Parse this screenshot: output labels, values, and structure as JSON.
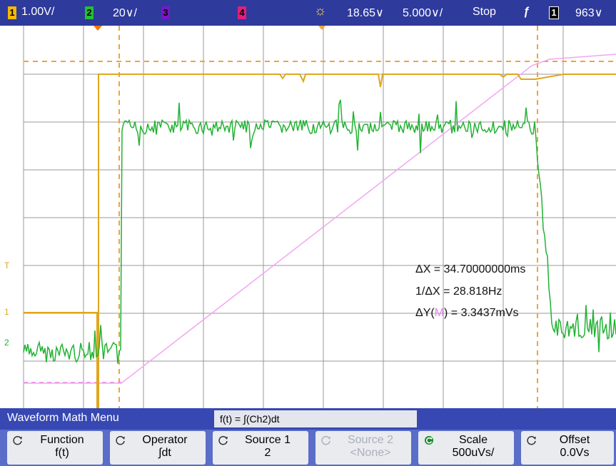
{
  "status_bar": {
    "ch1": {
      "num": "1",
      "scale": "1.00V/",
      "color": "#f5b800"
    },
    "ch2": {
      "num": "2",
      "scale": "20∨/",
      "color": "#22c033"
    },
    "ch3": {
      "num": "3",
      "color": "#7a16c8"
    },
    "ch4": {
      "num": "4",
      "color": "#e0207a"
    },
    "delay": "18.65∨",
    "timebase": "5.000∨/",
    "run_state": "Stop",
    "trigger_source": "1",
    "trigger_level": "963∨"
  },
  "measurements": {
    "delta_x": "ΔX = 34.70000000ms",
    "inv_delta_x": "1/ΔX = 28.818Hz",
    "delta_y_prefix": "ΔY(",
    "delta_y_source": "M",
    "delta_y_suffix": ") = 3.3437mVs"
  },
  "screen_markers": {
    "trigger_marker": "T",
    "ch1_marker": "1",
    "ch2_marker": "2"
  },
  "menu": {
    "title": "Waveform Math Menu",
    "formula": "f(t) = ∫(Ch2)dt",
    "softkeys": [
      {
        "label": "Function",
        "value": "f(t)",
        "enabled": true
      },
      {
        "label": "Operator",
        "value": "∫dt",
        "enabled": true
      },
      {
        "label": "Source 1",
        "value": "2",
        "enabled": true
      },
      {
        "label": "Source 2",
        "value": "<None>",
        "enabled": false
      },
      {
        "label": "Scale",
        "value": "500uVs/",
        "enabled": true
      },
      {
        "label": "Offset",
        "value": "0.0Vs",
        "enabled": true
      }
    ]
  }
}
